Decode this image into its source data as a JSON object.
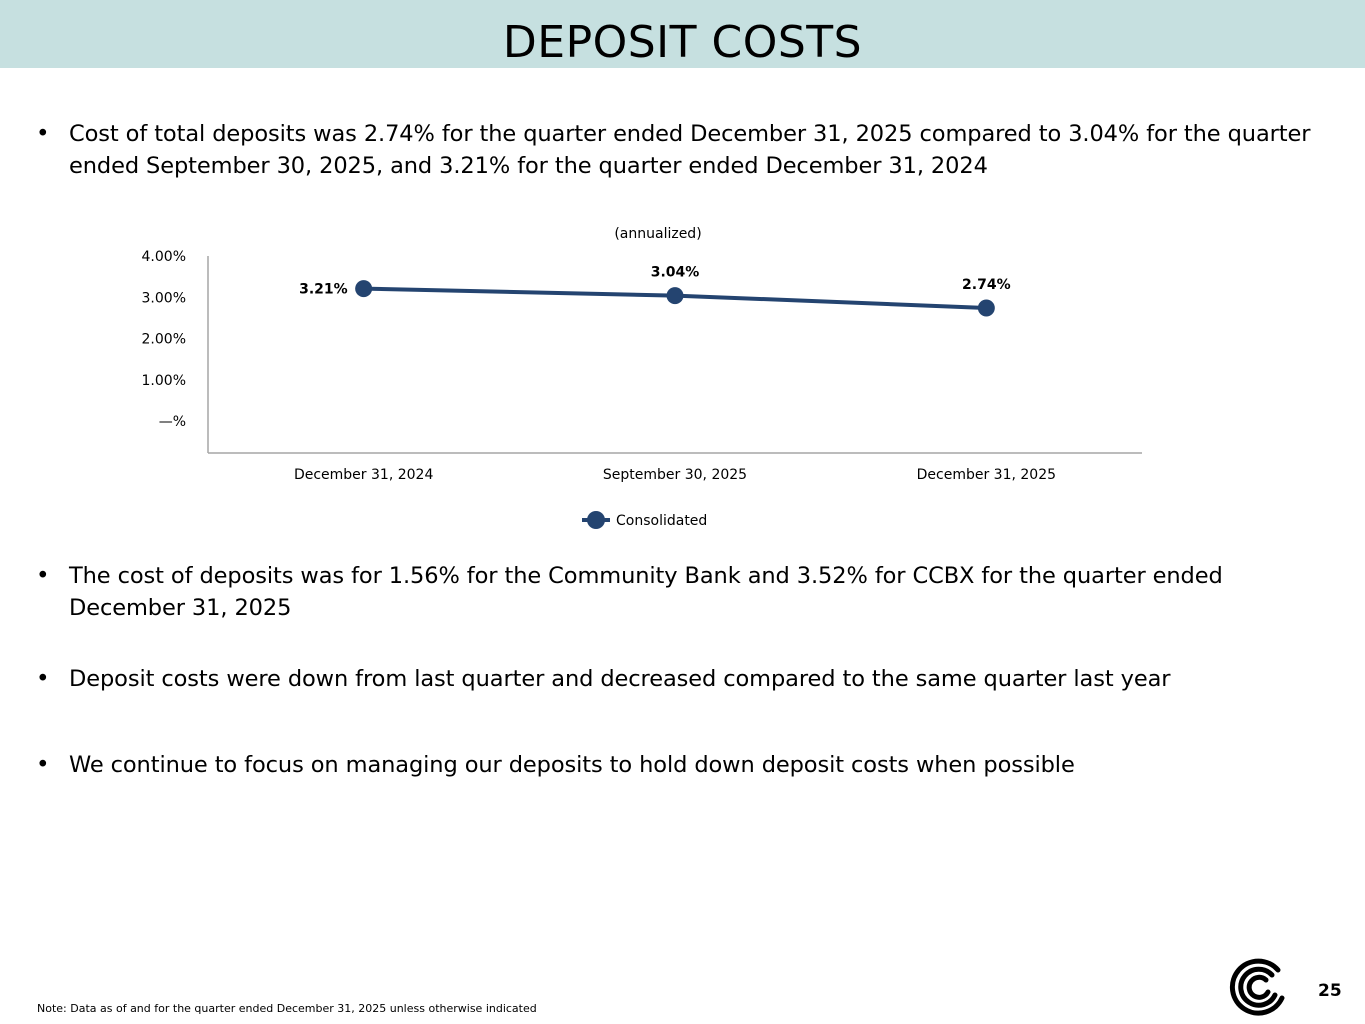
{
  "header": {
    "title": "DEPOSIT COSTS"
  },
  "bullets": {
    "symbol": "•",
    "b1": "Cost of total deposits was 2.74% for the quarter ended December 31, 2025 compared to 3.04% for the quarter ended September 30, 2025, and 3.21% for the quarter ended December 31, 2024",
    "b2": "The cost of deposits was for 1.56% for the Community Bank and 3.52% for CCBX for the quarter ended December 31, 2025",
    "b3": "Deposit costs were down from last quarter and decreased compared to the same quarter last year",
    "b4": "We continue to focus on managing our deposits to hold down deposit costs when possible"
  },
  "chart_data": {
    "type": "line",
    "title": "(annualized)",
    "categories": [
      "December 31, 2024",
      "September 30, 2025",
      "December 31, 2025"
    ],
    "series": [
      {
        "name": "Consolidated",
        "values": [
          3.21,
          3.04,
          2.74
        ],
        "labels": [
          "3.21%",
          "3.04%",
          "2.74%"
        ],
        "color": "#244470"
      }
    ],
    "yticks": [
      0,
      1,
      2,
      3,
      4
    ],
    "ytick_labels": [
      "—%",
      "1.00%",
      "2.00%",
      "3.00%",
      "4.00%"
    ],
    "ylim": [
      0,
      4
    ],
    "grid": false,
    "legend": "bottom",
    "xlabel": "",
    "ylabel": ""
  },
  "footer": {
    "note": "Note: Data as of and for the quarter ended December 31, 2025 unless otherwise indicated",
    "page_number": "25",
    "logo_icon": "company-logo-icon",
    "logo_color": "#000000"
  }
}
